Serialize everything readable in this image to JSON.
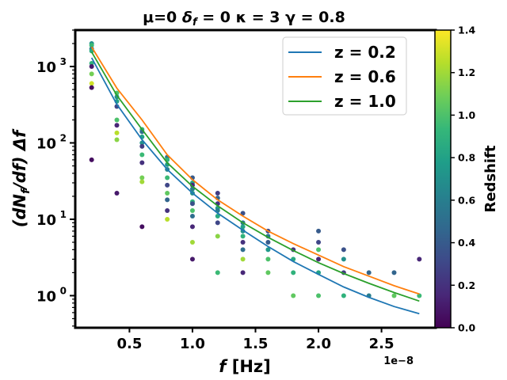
{
  "chart_data": {
    "type": "scatter",
    "title": "μ=0 δ_f = 0 κ = 3 γ = 0.8",
    "title_parts": {
      "mu": "μ=0 ",
      "delta": "δ",
      "delta_sub": "f",
      "rest": " = 0 κ = 3 γ = 0.8"
    },
    "xlabel": {
      "var": "f",
      "unit": " [Hz]"
    },
    "ylabel": {
      "pre": "(dN",
      "sub1": "f",
      "mid": "/df) Δ",
      "var": "f"
    },
    "x_offset_text": "1e−8",
    "xscale": "linear",
    "yscale": "log",
    "xlim": [
      0.07,
      2.93
    ],
    "ylim": [
      0.38,
      3000
    ],
    "x_ticks": [
      {
        "value": 0.5,
        "label": "0.5"
      },
      {
        "value": 1.0,
        "label": "1.0"
      },
      {
        "value": 1.5,
        "label": "1.5"
      },
      {
        "value": 2.0,
        "label": "2.0"
      },
      {
        "value": 2.5,
        "label": "2.5"
      }
    ],
    "y_ticks": [
      {
        "value": 1,
        "base": "10",
        "exp": "0"
      },
      {
        "value": 10,
        "base": "10",
        "exp": "1"
      },
      {
        "value": 100,
        "base": "10",
        "exp": "2"
      },
      {
        "value": 1000,
        "base": "10",
        "exp": "3"
      }
    ],
    "lines": [
      {
        "name": "z = 0.2",
        "color": "#1f77b4",
        "x": [
          0.2,
          0.4,
          0.6,
          0.8,
          1.0,
          1.2,
          1.4,
          1.6,
          1.8,
          2.0,
          2.2,
          2.4,
          2.6,
          2.8
        ],
        "y": [
          1300,
          320,
          110,
          45,
          22,
          12,
          7.2,
          4.4,
          2.8,
          1.9,
          1.3,
          0.95,
          0.72,
          0.58
        ]
      },
      {
        "name": "z = 0.6",
        "color": "#ff7f0e",
        "x": [
          0.2,
          0.4,
          0.6,
          0.8,
          1.0,
          1.2,
          1.4,
          1.6,
          1.8,
          2.0,
          2.2,
          2.4,
          2.6,
          2.8
        ],
        "y": [
          1800,
          520,
          200,
          70,
          33,
          18,
          11,
          7,
          4.8,
          3.4,
          2.4,
          1.8,
          1.35,
          1.05
        ]
      },
      {
        "name": "z = 1.0",
        "color": "#2ca02c",
        "x": [
          0.2,
          0.4,
          0.6,
          0.8,
          1.0,
          1.2,
          1.4,
          1.6,
          1.8,
          2.0,
          2.2,
          2.4,
          2.6,
          2.8
        ],
        "y": [
          1550,
          420,
          150,
          55,
          27,
          15,
          9,
          5.8,
          3.9,
          2.7,
          1.95,
          1.45,
          1.1,
          0.85
        ]
      }
    ],
    "scatter_points": [
      {
        "x": 0.2,
        "y": 2000,
        "z": 0.7
      },
      {
        "x": 0.2,
        "y": 1900,
        "z": 0.95
      },
      {
        "x": 0.2,
        "y": 1700,
        "z": 0.6
      },
      {
        "x": 0.2,
        "y": 1600,
        "z": 0.85
      },
      {
        "x": 0.2,
        "y": 1100,
        "z": 0.9
      },
      {
        "x": 0.2,
        "y": 1000,
        "z": 0.1
      },
      {
        "x": 0.2,
        "y": 800,
        "z": 1.1
      },
      {
        "x": 0.2,
        "y": 600,
        "z": 1.3
      },
      {
        "x": 0.2,
        "y": 530,
        "z": 0.05
      },
      {
        "x": 0.2,
        "y": 60,
        "z": 0.05
      },
      {
        "x": 0.4,
        "y": 450,
        "z": 1.0
      },
      {
        "x": 0.4,
        "y": 400,
        "z": 0.7
      },
      {
        "x": 0.4,
        "y": 350,
        "z": 0.8
      },
      {
        "x": 0.4,
        "y": 300,
        "z": 0.3
      },
      {
        "x": 0.4,
        "y": 200,
        "z": 1.0
      },
      {
        "x": 0.4,
        "y": 170,
        "z": 0.15
      },
      {
        "x": 0.4,
        "y": 135,
        "z": 1.25
      },
      {
        "x": 0.4,
        "y": 110,
        "z": 1.15
      },
      {
        "x": 0.4,
        "y": 22,
        "z": 0.1
      },
      {
        "x": 0.6,
        "y": 150,
        "z": 0.9
      },
      {
        "x": 0.6,
        "y": 140,
        "z": 0.5
      },
      {
        "x": 0.6,
        "y": 120,
        "z": 0.8
      },
      {
        "x": 0.6,
        "y": 100,
        "z": 0.7
      },
      {
        "x": 0.6,
        "y": 90,
        "z": 0.25
      },
      {
        "x": 0.6,
        "y": 70,
        "z": 0.95
      },
      {
        "x": 0.6,
        "y": 55,
        "z": 0.2
      },
      {
        "x": 0.6,
        "y": 35,
        "z": 1.1
      },
      {
        "x": 0.6,
        "y": 31,
        "z": 1.2
      },
      {
        "x": 0.6,
        "y": 8,
        "z": 0.05
      },
      {
        "x": 0.8,
        "y": 65,
        "z": 0.55
      },
      {
        "x": 0.8,
        "y": 60,
        "z": 0.9
      },
      {
        "x": 0.8,
        "y": 52,
        "z": 0.75
      },
      {
        "x": 0.8,
        "y": 45,
        "z": 0.65
      },
      {
        "x": 0.8,
        "y": 35,
        "z": 0.95
      },
      {
        "x": 0.8,
        "y": 28,
        "z": 0.3
      },
      {
        "x": 0.8,
        "y": 22,
        "z": 1.05
      },
      {
        "x": 0.8,
        "y": 18,
        "z": 0.45
      },
      {
        "x": 0.8,
        "y": 13,
        "z": 0.2
      },
      {
        "x": 0.8,
        "y": 10,
        "z": 1.25
      },
      {
        "x": 1.0,
        "y": 35,
        "z": 0.4
      },
      {
        "x": 1.0,
        "y": 30,
        "z": 0.8
      },
      {
        "x": 1.0,
        "y": 28,
        "z": 0.15
      },
      {
        "x": 1.0,
        "y": 25,
        "z": 0.6
      },
      {
        "x": 1.0,
        "y": 22,
        "z": 0.7
      },
      {
        "x": 1.0,
        "y": 17,
        "z": 0.9
      },
      {
        "x": 1.0,
        "y": 16,
        "z": 0.35
      },
      {
        "x": 1.0,
        "y": 13,
        "z": 1.0
      },
      {
        "x": 1.0,
        "y": 11,
        "z": 0.5
      },
      {
        "x": 1.0,
        "y": 8,
        "z": 0.15
      },
      {
        "x": 1.0,
        "y": 5,
        "z": 1.2
      },
      {
        "x": 1.0,
        "y": 3,
        "z": 0.1
      },
      {
        "x": 1.2,
        "y": 22,
        "z": 0.25
      },
      {
        "x": 1.2,
        "y": 19,
        "z": 0.45
      },
      {
        "x": 1.2,
        "y": 16,
        "z": 0.2
      },
      {
        "x": 1.2,
        "y": 14,
        "z": 0.75
      },
      {
        "x": 1.2,
        "y": 13,
        "z": 0.6
      },
      {
        "x": 1.2,
        "y": 11,
        "z": 0.85
      },
      {
        "x": 1.2,
        "y": 9,
        "z": 0.3
      },
      {
        "x": 1.2,
        "y": 6,
        "z": 1.15
      },
      {
        "x": 1.2,
        "y": 2,
        "z": 0.95
      },
      {
        "x": 1.4,
        "y": 12,
        "z": 0.35
      },
      {
        "x": 1.4,
        "y": 9,
        "z": 0.55
      },
      {
        "x": 1.4,
        "y": 8,
        "z": 0.8
      },
      {
        "x": 1.4,
        "y": 7,
        "z": 0.7
      },
      {
        "x": 1.4,
        "y": 6,
        "z": 0.9
      },
      {
        "x": 1.4,
        "y": 5,
        "z": 0.2
      },
      {
        "x": 1.4,
        "y": 4,
        "z": 0.5
      },
      {
        "x": 1.4,
        "y": 3,
        "z": 1.2
      },
      {
        "x": 1.4,
        "y": 2,
        "z": 0.15
      },
      {
        "x": 1.6,
        "y": 7,
        "z": 0.3
      },
      {
        "x": 1.6,
        "y": 6,
        "z": 0.55
      },
      {
        "x": 1.6,
        "y": 5,
        "z": 0.4
      },
      {
        "x": 1.6,
        "y": 4,
        "z": 0.75
      },
      {
        "x": 1.6,
        "y": 3,
        "z": 1.0
      },
      {
        "x": 1.6,
        "y": 2,
        "z": 1.05
      },
      {
        "x": 1.8,
        "y": 4,
        "z": 0.2
      },
      {
        "x": 1.8,
        "y": 3,
        "z": 0.85
      },
      {
        "x": 1.8,
        "y": 2,
        "z": 0.9
      },
      {
        "x": 1.8,
        "y": 1,
        "z": 1.05
      },
      {
        "x": 2.0,
        "y": 7,
        "z": 0.4
      },
      {
        "x": 2.0,
        "y": 5,
        "z": 0.3
      },
      {
        "x": 2.0,
        "y": 4,
        "z": 1.0
      },
      {
        "x": 2.0,
        "y": 3,
        "z": 0.15
      },
      {
        "x": 2.0,
        "y": 2,
        "z": 0.8
      },
      {
        "x": 2.0,
        "y": 1,
        "z": 1.0
      },
      {
        "x": 2.2,
        "y": 4,
        "z": 0.35
      },
      {
        "x": 2.2,
        "y": 3,
        "z": 0.7
      },
      {
        "x": 2.2,
        "y": 2,
        "z": 0.25
      },
      {
        "x": 2.2,
        "y": 1,
        "z": 0.9
      },
      {
        "x": 2.4,
        "y": 2,
        "z": 0.45
      },
      {
        "x": 2.4,
        "y": 1,
        "z": 0.6
      },
      {
        "x": 2.6,
        "y": 2,
        "z": 0.45
      },
      {
        "x": 2.6,
        "y": 1,
        "z": 1.05
      },
      {
        "x": 2.8,
        "y": 3,
        "z": 0.15
      },
      {
        "x": 2.8,
        "y": 1,
        "z": 0.95
      }
    ],
    "colorbar": {
      "label": "Redshift",
      "range": [
        0,
        1.4
      ],
      "ticks": [
        {
          "value": 0.0,
          "label": "0.0"
        },
        {
          "value": 0.2,
          "label": "0.2"
        },
        {
          "value": 0.4,
          "label": "0.4"
        },
        {
          "value": 0.6,
          "label": "0.6"
        },
        {
          "value": 0.8,
          "label": "0.8"
        },
        {
          "value": 1.0,
          "label": "1.0"
        },
        {
          "value": 1.2,
          "label": "1.2"
        },
        {
          "value": 1.4,
          "label": "1.4"
        }
      ],
      "colormap": "viridis",
      "stops": [
        "#440154",
        "#482878",
        "#3e4989",
        "#31688e",
        "#26828e",
        "#1f9e89",
        "#35b779",
        "#6ece58",
        "#b5de2b",
        "#fde725"
      ]
    },
    "legend": {
      "position": "top-right"
    },
    "grid": false
  }
}
